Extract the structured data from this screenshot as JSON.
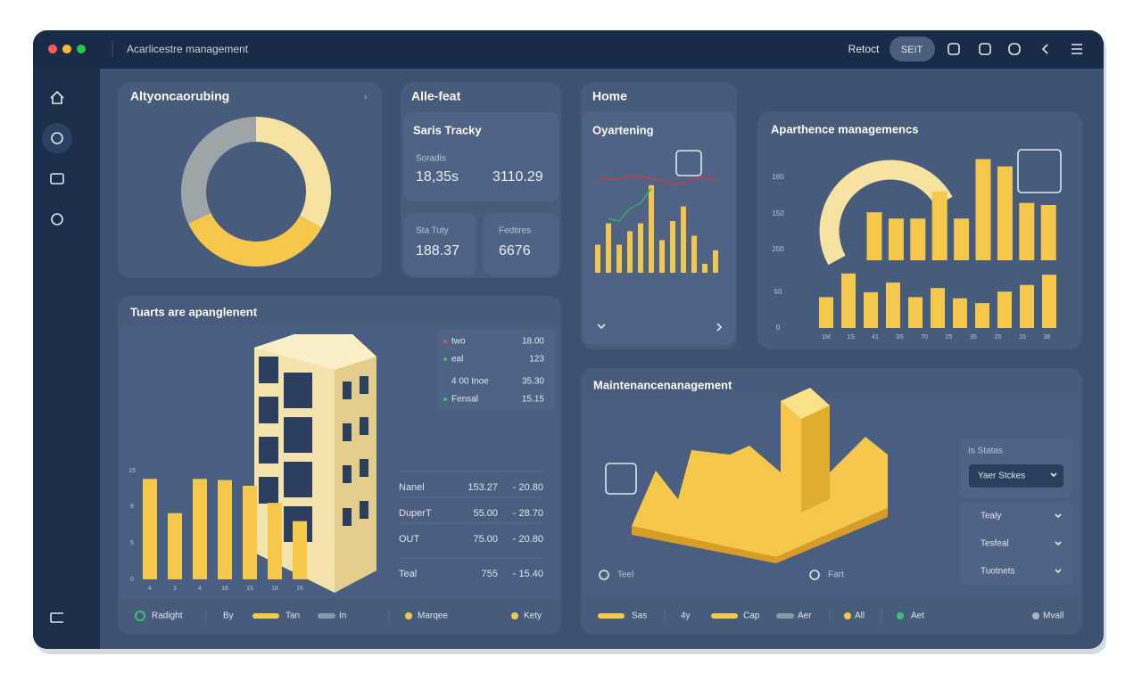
{
  "window": {
    "title": "Acarlicestre management"
  },
  "toolbar": {
    "link": "Retoct",
    "button": "SEIT"
  },
  "cards": {
    "donut": {
      "title": "Altyoncaorubing",
      "chart": {
        "type": "pie",
        "values": [
          33,
          35,
          32
        ],
        "colors": [
          "#f7e3a1",
          "#f5c84c",
          "#9ea5a8"
        ]
      }
    },
    "tracker": {
      "title": "Alle-feat",
      "subtitle": "Saris Tracky",
      "label": "Soradis",
      "value1": "18,35s",
      "value2": "3110.29",
      "box1": {
        "label": "Sta Tuty",
        "value": "188.37"
      },
      "box2": {
        "label": "Fedtires",
        "value": "6676"
      }
    },
    "home": {
      "title": "Home",
      "subtitle": "Oyartening",
      "chart": {
        "type": "bar",
        "values": [
          25,
          44,
          25,
          37,
          44,
          78,
          29,
          46,
          59,
          33,
          8,
          20
        ],
        "ylim": [
          0,
          100
        ],
        "color": "#f5c84c",
        "lines": [
          {
            "color": "#2fb35a",
            "values": [
              null,
              48,
              46,
              57,
              62,
              75,
              null,
              null,
              null,
              null,
              null,
              null
            ]
          },
          {
            "color": "#c0413f",
            "values": [
              82,
              84,
              83,
              86,
              85,
              84,
              82,
              78,
              80,
              84,
              85,
              83
            ]
          }
        ]
      }
    },
    "apartment": {
      "title": "Aparthence managemencs",
      "chart": {
        "type": "bar",
        "color": "#f5c84c",
        "y_labels": [
          "160",
          "150",
          "200",
          "50",
          "0"
        ],
        "x_labels": [
          "1M",
          "1S",
          "41",
          "3S",
          "70",
          "25",
          "35",
          "25",
          "15",
          "36"
        ],
        "upper": {
          "values": [
            46,
            40,
            40,
            66,
            40,
            97,
            90,
            55,
            53
          ],
          "ylim": [
            0,
            100
          ]
        },
        "lower": {
          "values": [
            51,
            90,
            59,
            75,
            51,
            66,
            49,
            41,
            60,
            71,
            88
          ],
          "ylim": [
            0,
            100
          ]
        }
      }
    },
    "building": {
      "title": "Tuarts are apanglenent",
      "legend": [
        {
          "label": "two",
          "value": "18.00"
        },
        {
          "label": "eal",
          "value": "123"
        },
        {
          "label": "4 00 Inoe",
          "value": "35.30"
        },
        {
          "label": "Fensal",
          "value": "15.15"
        }
      ],
      "table": [
        [
          "Nanel",
          "153.27",
          "- 20.80"
        ],
        [
          "DuperT",
          "55.00",
          "- 28.70"
        ],
        [
          "OUT",
          "75.00",
          "- 20.80"
        ],
        [
          "Teal",
          "755",
          "- 15.40"
        ]
      ],
      "chart": {
        "type": "bar",
        "color": "#f5c84c",
        "values": [
          88,
          58,
          88,
          87,
          82,
          67,
          51
        ],
        "ylim": [
          0,
          100
        ],
        "y_labels": [
          "15",
          "8",
          "5",
          "0"
        ],
        "x_labels": [
          "4",
          "3",
          "4",
          "18",
          "15",
          "18",
          "16"
        ]
      },
      "footer": [
        "Radight",
        "By",
        "Tan",
        "In",
        "Marqee",
        "Kety"
      ]
    },
    "maintenance": {
      "title": "Maintenancenanagement",
      "labels": [
        "Teel",
        "Fart"
      ],
      "panel_title": "Is Statas",
      "select": "Yaer Stckes",
      "items": [
        "Tealy",
        "Tesfeal",
        "Tuotnets"
      ],
      "footer": [
        "Sas",
        "4y",
        "Cap",
        "Aer",
        "All",
        "Aet",
        "Mvall"
      ]
    }
  }
}
